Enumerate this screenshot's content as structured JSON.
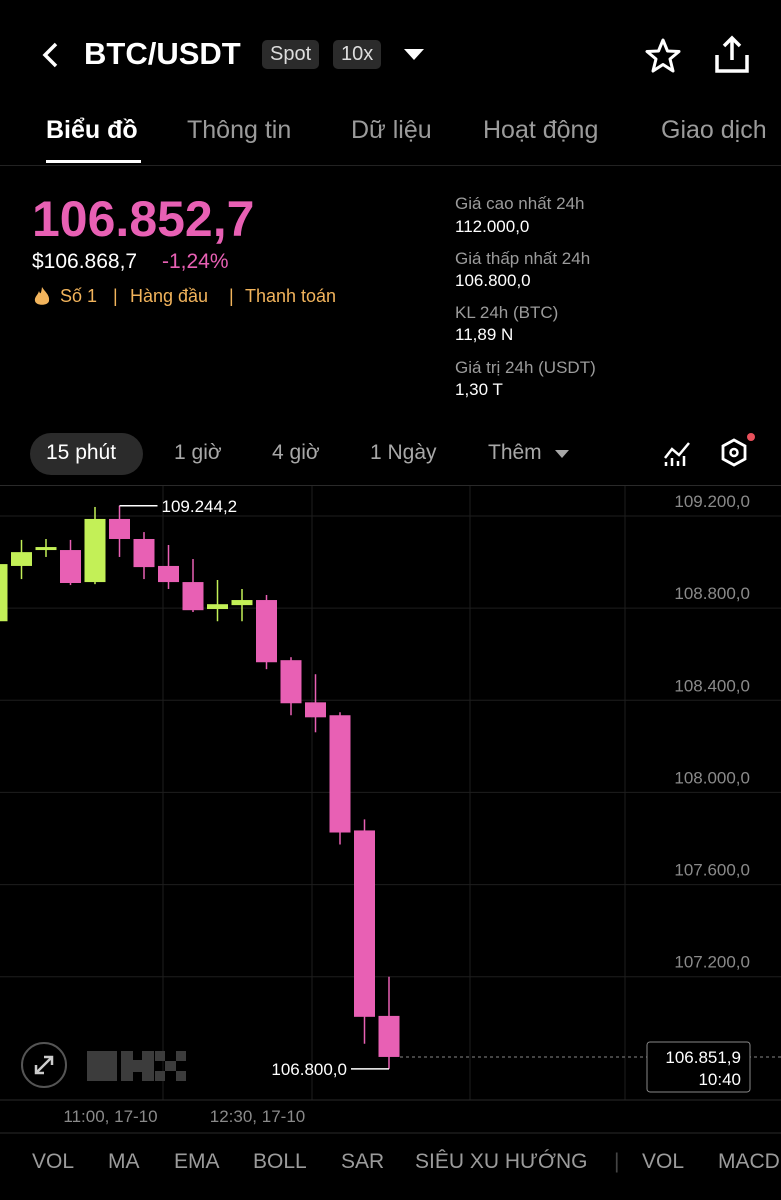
{
  "header": {
    "title": "BTC/USDT",
    "badges": [
      "Spot",
      "10x"
    ]
  },
  "tabs": [
    "Biểu đồ",
    "Thông tin",
    "Dữ liệu",
    "Hoạt động",
    "Giao dịch"
  ],
  "price": {
    "last": "106.852,7",
    "usd": "$106.868,7",
    "change": "-1,24%",
    "tags": [
      "Số 1",
      "Hàng đầu",
      "Thanh toán"
    ]
  },
  "stats": [
    {
      "label": "Giá cao nhất 24h",
      "value": "112.000,0"
    },
    {
      "label": "Giá thấp nhất 24h",
      "value": "106.800,0"
    },
    {
      "label": "KL 24h (BTC)",
      "value": "11,89 N"
    },
    {
      "label": "Giá trị 24h (USDT)",
      "value": "1,30 T"
    }
  ],
  "intervals": [
    "15 phút",
    "1 giờ",
    "4 giờ",
    "1 Ngày",
    "Thêm"
  ],
  "chart_data": {
    "type": "candlestick",
    "categories": [
      null,
      null,
      null,
      null,
      null,
      "11:00, 17-10",
      null,
      null,
      null,
      null,
      null,
      "12:30, 17-10",
      null,
      null,
      null,
      null,
      null
    ],
    "open": [
      108743,
      108983,
      109052,
      109052,
      108913,
      109187,
      109100,
      108983,
      108913,
      108796,
      108813,
      108835,
      108574,
      108391,
      108335,
      107835,
      107030
    ],
    "high": [
      109078,
      109096,
      109100,
      109096,
      109239,
      109244.2,
      109130,
      109074,
      109013,
      108922,
      108883,
      108857,
      108587,
      108513,
      108348,
      107883,
      107200
    ],
    "low": [
      108743,
      108926,
      109022,
      108900,
      108904,
      109022,
      108926,
      108883,
      108783,
      108743,
      108743,
      108535,
      108335,
      108261,
      107774,
      106909,
      106800
    ],
    "close": [
      108991,
      109043,
      109065,
      108909,
      109187,
      109100,
      108978,
      108913,
      108791,
      108817,
      108835,
      108565,
      108387,
      108326,
      107826,
      107026,
      106851.9
    ],
    "up_color": "#c3f057",
    "down_color": "#e860b4",
    "ylim": [
      106665,
      109330
    ],
    "yticks": [
      {
        "value": 107200,
        "label": "107.200,0"
      },
      {
        "value": 107600,
        "label": "107.600,0"
      },
      {
        "value": 108000,
        "label": "108.000,0"
      },
      {
        "value": 108400,
        "label": "108.400,0"
      },
      {
        "value": 108800,
        "label": "108.800,0"
      },
      {
        "value": 109200,
        "label": "109.200,0"
      }
    ],
    "grid": true,
    "annotations": [
      {
        "label": "109.244,2",
        "value": 109244.2
      },
      {
        "label": "106.800,0",
        "value": 106800
      }
    ],
    "current": {
      "label": "106.851,9",
      "value": 106851.9,
      "time": "10:40"
    }
  },
  "indicators": [
    "VOL",
    "MA",
    "EMA",
    "BOLL",
    "SAR",
    "SIÊU XU HƯỚNG",
    "VOL",
    "MACD"
  ]
}
